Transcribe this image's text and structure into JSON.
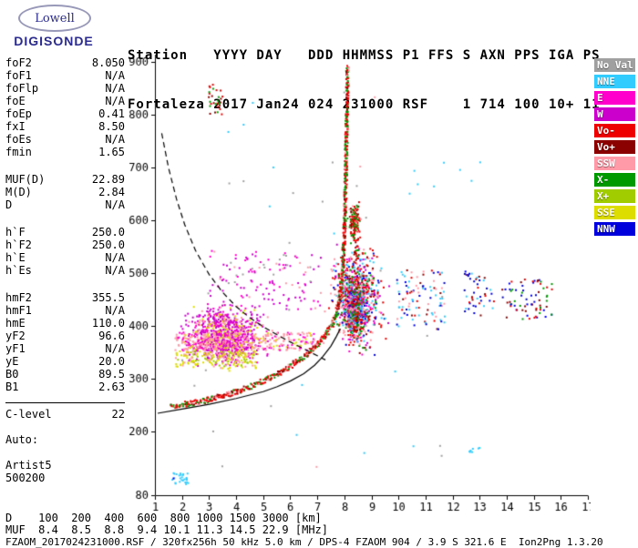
{
  "logo": {
    "top": "Lowell",
    "bottom": "DIGISONDE"
  },
  "header": {
    "line1": "Station   YYYY DAY   DDD HHMMSS P1 FFS S AXN PPS IGA PS",
    "line2": "Fortaleza 2017 Jan24 024 231000 RSF    1 714 100 10+ 11"
  },
  "params": {
    "groups": [
      {
        "gap": 0,
        "divider": false,
        "rows": [
          [
            "foF2",
            "8.050"
          ],
          [
            "foF1",
            "N/A"
          ],
          [
            "foFlp",
            "N/A"
          ],
          [
            "foE",
            "N/A"
          ],
          [
            "foEp",
            "0.41"
          ],
          [
            "fxI",
            "8.50"
          ],
          [
            "foEs",
            "N/A"
          ],
          [
            "fmin",
            "1.65"
          ]
        ]
      },
      {
        "gap": 16,
        "divider": false,
        "rows": [
          [
            "MUF(D)",
            "22.89"
          ],
          [
            "M(D)",
            "2.84"
          ],
          [
            "D",
            "N/A"
          ]
        ]
      },
      {
        "gap": 16,
        "divider": false,
        "rows": [
          [
            "h`F",
            "250.0"
          ],
          [
            "h`F2",
            "250.0"
          ],
          [
            "h`E",
            "N/A"
          ],
          [
            "h`Es",
            "N/A"
          ]
        ]
      },
      {
        "gap": 16,
        "divider": false,
        "rows": [
          [
            "hmF2",
            "355.5"
          ],
          [
            "hmF1",
            "N/A"
          ],
          [
            "hmE",
            "110.0"
          ],
          [
            "yF2",
            "96.6"
          ],
          [
            "yF1",
            "N/A"
          ],
          [
            "yE",
            "20.0"
          ],
          [
            "B0",
            "89.5"
          ],
          [
            "B1",
            "2.63"
          ]
        ]
      },
      {
        "gap": 10,
        "divider": true,
        "rows": [
          [
            "C-level",
            "22"
          ]
        ]
      },
      {
        "gap": 14,
        "divider": false,
        "rows": [
          [
            "Auto:",
            ""
          ]
        ]
      },
      {
        "gap": 14,
        "divider": false,
        "rows": [
          [
            "Artist5",
            ""
          ],
          [
            "500200",
            ""
          ]
        ]
      }
    ]
  },
  "legend": {
    "items": [
      {
        "label": "No Val",
        "color": "#A0A0A0"
      },
      {
        "label": "NNE",
        "color": "#33CCFF"
      },
      {
        "label": "E",
        "color": "#FF00CC"
      },
      {
        "label": "W",
        "color": "#CC00CC"
      },
      {
        "label": "Vo-",
        "color": "#EE0000"
      },
      {
        "label": "Vo+",
        "color": "#8B0000"
      },
      {
        "label": "SSW",
        "color": "#FF9AA8"
      },
      {
        "label": "X-",
        "color": "#009900"
      },
      {
        "label": "X+",
        "color": "#A0CC00"
      },
      {
        "label": "SSE",
        "color": "#DDDD00"
      },
      {
        "label": "NNW",
        "color": "#0000DD"
      }
    ]
  },
  "chart_data": {
    "type": "scatter",
    "xlim": [
      1,
      17
    ],
    "ylim": [
      80,
      900
    ],
    "x_unit": "MHz",
    "y_unit": "km",
    "x_ticks": [
      1,
      2,
      3,
      4,
      5,
      6,
      7,
      8,
      9,
      10,
      11,
      12,
      13,
      14,
      15,
      16,
      17
    ],
    "y_ticks": [
      80,
      200,
      300,
      400,
      500,
      600,
      700,
      800,
      900
    ],
    "o_trace": [
      [
        1.6,
        249
      ],
      [
        1.9,
        251
      ],
      [
        2.2,
        253
      ],
      [
        2.6,
        256
      ],
      [
        3.0,
        261
      ],
      [
        3.4,
        266
      ],
      [
        3.8,
        272
      ],
      [
        4.2,
        279
      ],
      [
        4.6,
        287
      ],
      [
        5.0,
        296
      ],
      [
        5.4,
        306
      ],
      [
        5.8,
        318
      ],
      [
        6.2,
        331
      ],
      [
        6.5,
        342
      ],
      [
        6.8,
        355
      ],
      [
        7.1,
        370
      ],
      [
        7.35,
        386
      ],
      [
        7.55,
        403
      ],
      [
        7.7,
        420
      ],
      [
        7.8,
        445
      ],
      [
        7.87,
        470
      ],
      [
        7.93,
        500
      ],
      [
        7.97,
        535
      ],
      [
        8.0,
        575
      ],
      [
        8.03,
        620
      ],
      [
        8.05,
        670
      ],
      [
        8.07,
        725
      ],
      [
        8.09,
        785
      ],
      [
        8.11,
        845
      ],
      [
        8.12,
        895
      ]
    ],
    "solid_profile": [
      [
        1.1,
        235
      ],
      [
        2.0,
        243
      ],
      [
        3.0,
        252
      ],
      [
        4.0,
        263
      ],
      [
        5.0,
        276
      ],
      [
        5.5,
        285
      ],
      [
        6.0,
        296
      ],
      [
        6.5,
        310
      ],
      [
        6.9,
        326
      ],
      [
        7.2,
        342
      ],
      [
        7.5,
        362
      ],
      [
        7.7,
        380
      ],
      [
        7.85,
        395
      ]
    ],
    "dashed_curve": [
      [
        1.25,
        765
      ],
      [
        1.5,
        700
      ],
      [
        1.8,
        640
      ],
      [
        2.1,
        592
      ],
      [
        2.5,
        543
      ],
      [
        3.0,
        498
      ],
      [
        3.5,
        464
      ],
      [
        4.0,
        437
      ],
      [
        4.5,
        416
      ],
      [
        5.0,
        399
      ],
      [
        5.5,
        384
      ],
      [
        6.0,
        370
      ],
      [
        6.5,
        357
      ],
      [
        7.0,
        344
      ],
      [
        7.3,
        336
      ]
    ],
    "clusters": [
      {
        "name": "spread-f-wide-cloud",
        "shape": "gauss",
        "count": 900,
        "f": [
          1.7,
          5.4
        ],
        "h": [
          318,
          448
        ],
        "colors": [
          [
            "#CC00CC",
            0.5
          ],
          [
            "#FF00CC",
            0.2
          ],
          [
            "#FF9AA8",
            0.15
          ],
          [
            "#DDDD00",
            0.15
          ]
        ]
      },
      {
        "name": "spread-f-pink-band",
        "shape": "uniform",
        "count": 330,
        "f": [
          1.7,
          6.9
        ],
        "h": [
          356,
          390
        ],
        "colors": [
          [
            "#FF9AA8",
            0.6
          ],
          [
            "#FF00CC",
            0.25
          ],
          [
            "#DDDD00",
            0.15
          ]
        ]
      },
      {
        "name": "spread-f-yellow-band",
        "shape": "uniform",
        "count": 170,
        "f": [
          1.7,
          4.7
        ],
        "h": [
          322,
          355
        ],
        "colors": [
          [
            "#DDDD00",
            0.55
          ],
          [
            "#A0CC00",
            0.2
          ],
          [
            "#FF9AA8",
            0.25
          ]
        ]
      },
      {
        "name": "spread-f-upper-sparse",
        "shape": "uniform",
        "count": 130,
        "f": [
          3.0,
          7.1
        ],
        "h": [
          430,
          545
        ],
        "colors": [
          [
            "#CC00CC",
            0.45
          ],
          [
            "#FF00CC",
            0.3
          ],
          [
            "#A0A0A0",
            0.1
          ],
          [
            "#FF9AA8",
            0.15
          ]
        ]
      },
      {
        "name": "fof2-spread-cluster",
        "shape": "gauss",
        "count": 700,
        "f": [
          7.3,
          9.6
        ],
        "h": [
          335,
          575
        ],
        "colors": [
          [
            "#EE0000",
            0.2
          ],
          [
            "#FF9AA8",
            0.16
          ],
          [
            "#FF00CC",
            0.12
          ],
          [
            "#33CCFF",
            0.13
          ],
          [
            "#0000DD",
            0.1
          ],
          [
            "#009900",
            0.12
          ],
          [
            "#8B0000",
            0.09
          ],
          [
            "#CC00CC",
            0.08
          ]
        ]
      },
      {
        "name": "fof2-core",
        "shape": "gauss",
        "count": 420,
        "f": [
          7.8,
          8.9
        ],
        "h": [
          360,
          500
        ],
        "colors": [
          [
            "#EE0000",
            0.25
          ],
          [
            "#FF9AA8",
            0.2
          ],
          [
            "#33CCFF",
            0.15
          ],
          [
            "#009900",
            0.15
          ],
          [
            "#CC00CC",
            0.1
          ],
          [
            "#0000DD",
            0.15
          ]
        ]
      },
      {
        "name": "x-trace",
        "shape": "uniform",
        "count": 90,
        "f": [
          8.32,
          8.5
        ],
        "h": [
          390,
          630
        ],
        "colors": [
          [
            "#EE0000",
            0.5
          ],
          [
            "#009900",
            0.25
          ],
          [
            "#8B0000",
            0.25
          ]
        ]
      },
      {
        "name": "fof2-spike-top",
        "shape": "gauss",
        "count": 120,
        "f": [
          8.05,
          8.6
        ],
        "h": [
          555,
          640
        ],
        "colors": [
          [
            "#EE0000",
            0.4
          ],
          [
            "#009900",
            0.3
          ],
          [
            "#8B0000",
            0.15
          ],
          [
            "#FF9AA8",
            0.15
          ]
        ]
      },
      {
        "name": "sparse-10-11MHz",
        "shape": "uniform",
        "count": 100,
        "f": [
          9.9,
          11.7
        ],
        "h": [
          395,
          510
        ],
        "colors": [
          [
            "#33CCFF",
            0.3
          ],
          [
            "#0000DD",
            0.25
          ],
          [
            "#FF9AA8",
            0.2
          ],
          [
            "#EE0000",
            0.13
          ],
          [
            "#8B0000",
            0.12
          ]
        ]
      },
      {
        "name": "sparse-12-13MHz",
        "shape": "uniform",
        "count": 45,
        "f": [
          12.4,
          13.5
        ],
        "h": [
          420,
          505
        ],
        "colors": [
          [
            "#0000DD",
            0.45
          ],
          [
            "#EE0000",
            0.2
          ],
          [
            "#33CCFF",
            0.2
          ],
          [
            "#8B0000",
            0.15
          ]
        ]
      },
      {
        "name": "sparse-14-15MHz",
        "shape": "uniform",
        "count": 70,
        "f": [
          13.8,
          15.7
        ],
        "h": [
          415,
          495
        ],
        "colors": [
          [
            "#0000DD",
            0.4
          ],
          [
            "#EE0000",
            0.2
          ],
          [
            "#8B0000",
            0.2
          ],
          [
            "#009900",
            0.2
          ]
        ]
      },
      {
        "name": "es-trace-low",
        "shape": "uniform",
        "count": 28,
        "f": [
          1.6,
          2.2
        ],
        "h": [
          102,
          124
        ],
        "colors": [
          [
            "#33CCFF",
            0.8
          ],
          [
            "#0000DD",
            0.2
          ]
        ]
      },
      {
        "name": "specks-13MHz-low",
        "shape": "uniform",
        "count": 7,
        "f": [
          12.5,
          13.0
        ],
        "h": [
          155,
          175
        ],
        "colors": [
          [
            "#33CCFF",
            1
          ]
        ]
      },
      {
        "name": "second-hop-top-left",
        "shape": "uniform",
        "count": 30,
        "f": [
          2.95,
          3.5
        ],
        "h": [
          800,
          860
        ],
        "colors": [
          [
            "#EE0000",
            0.55
          ],
          [
            "#8B0000",
            0.25
          ],
          [
            "#009900",
            0.2
          ]
        ]
      },
      {
        "name": "high-cyan-specks",
        "shape": "uniform",
        "count": 8,
        "f": [
          10.2,
          13.1
        ],
        "h": [
          650,
          715
        ],
        "colors": [
          [
            "#33CCFF",
            1
          ]
        ]
      },
      {
        "name": "background-noise",
        "shape": "uniform",
        "count": 40,
        "f": [
          1.4,
          11.8
        ],
        "h": [
          130,
          850
        ],
        "colors": [
          [
            "#A0A0A0",
            0.6
          ],
          [
            "#33CCFF",
            0.2
          ],
          [
            "#FF9AA8",
            0.2
          ]
        ]
      }
    ],
    "d_row": {
      "label": "D",
      "values": [
        100,
        200,
        400,
        600,
        800,
        1000,
        1500,
        3000
      ],
      "unit": "[km]"
    },
    "muf_row": {
      "label": "MUF",
      "values": [
        8.4,
        8.5,
        8.8,
        9.4,
        10.1,
        11.3,
        14.5,
        22.9
      ],
      "unit": "[MHz]"
    }
  },
  "footer": {
    "status_line": "FZAOM_2017024231000.RSF / 320fx256h 50 kHz 5.0 km / DPS-4 FZAOM 904 / 3.9 S 321.6 E  Ion2Png 1.3.20"
  }
}
